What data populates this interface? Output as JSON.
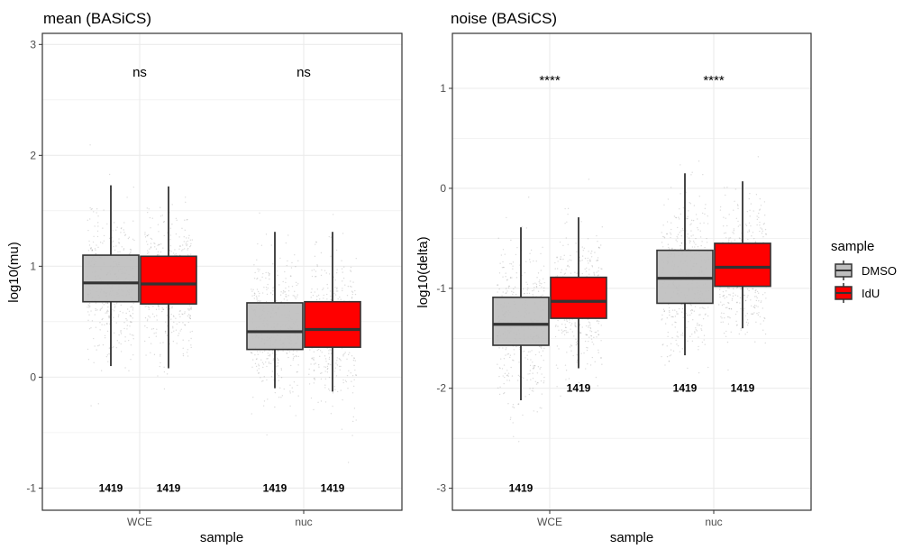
{
  "chart_data": [
    {
      "type": "box",
      "title": "mean (BASiCS)",
      "xlabel": "sample",
      "ylabel": "log10(mu)",
      "ylim": [
        -1.2,
        3.1
      ],
      "yticks": [
        -1,
        0,
        1,
        2,
        3
      ],
      "categories": [
        "WCE",
        "nuc"
      ],
      "grid": true,
      "series": [
        {
          "name": "DMSO",
          "boxes": [
            {
              "category": "WCE",
              "whisker_low": 0.1,
              "q1": 0.68,
              "median": 0.85,
              "q3": 1.1,
              "whisker_high": 1.73,
              "n_label": "1419",
              "n_label_y": -1.0
            },
            {
              "category": "nuc",
              "whisker_low": -0.1,
              "q1": 0.25,
              "median": 0.41,
              "q3": 0.67,
              "whisker_high": 1.31,
              "n_label": "1419",
              "n_label_y": -1.0
            }
          ]
        },
        {
          "name": "IdU",
          "boxes": [
            {
              "category": "WCE",
              "whisker_low": 0.08,
              "q1": 0.66,
              "median": 0.84,
              "q3": 1.09,
              "whisker_high": 1.72,
              "n_label": "1419",
              "n_label_y": -1.0
            },
            {
              "category": "nuc",
              "whisker_low": -0.13,
              "q1": 0.27,
              "median": 0.43,
              "q3": 0.68,
              "whisker_high": 1.31,
              "n_label": "1419",
              "n_label_y": -1.0
            }
          ]
        }
      ],
      "annotations": [
        {
          "category": "WCE",
          "text": "ns",
          "y": 2.75
        },
        {
          "category": "nuc",
          "text": "ns",
          "y": 2.75
        }
      ]
    },
    {
      "type": "box",
      "title": "noise (BASiCS)",
      "xlabel": "sample",
      "ylabel": "log10(delta)",
      "ylim": [
        -3.22,
        1.55
      ],
      "yticks": [
        -3,
        -2,
        -1,
        0,
        1
      ],
      "categories": [
        "WCE",
        "nuc"
      ],
      "grid": true,
      "series": [
        {
          "name": "DMSO",
          "boxes": [
            {
              "category": "WCE",
              "whisker_low": -2.12,
              "q1": -1.57,
              "median": -1.36,
              "q3": -1.09,
              "whisker_high": -0.39,
              "n_label": "1419",
              "n_label_y": -3.0
            },
            {
              "category": "nuc",
              "whisker_low": -1.67,
              "q1": -1.15,
              "median": -0.9,
              "q3": -0.62,
              "whisker_high": 0.15,
              "n_label": "1419",
              "n_label_y": -2.0
            }
          ]
        },
        {
          "name": "IdU",
          "boxes": [
            {
              "category": "WCE",
              "whisker_low": -1.8,
              "q1": -1.3,
              "median": -1.13,
              "q3": -0.89,
              "whisker_high": -0.29,
              "n_label": "1419",
              "n_label_y": -2.0
            },
            {
              "category": "nuc",
              "whisker_low": -1.4,
              "q1": -0.98,
              "median": -0.79,
              "q3": -0.55,
              "whisker_high": 0.07,
              "n_label": "1419",
              "n_label_y": -2.0
            }
          ]
        }
      ],
      "annotations": [
        {
          "category": "WCE",
          "text": "****",
          "y": 1.08
        },
        {
          "category": "nuc",
          "text": "****",
          "y": 1.08
        }
      ]
    }
  ],
  "legend": {
    "title": "sample",
    "placement": "right",
    "items": [
      {
        "label": "DMSO",
        "color": "#bebebe"
      },
      {
        "label": "IdU",
        "color": "#ff0000"
      }
    ]
  },
  "colors": {
    "DMSO": "#bebebe",
    "IdU": "#ff0000",
    "points": "#000000",
    "grid": "#ebebeb",
    "border": "#333333"
  }
}
